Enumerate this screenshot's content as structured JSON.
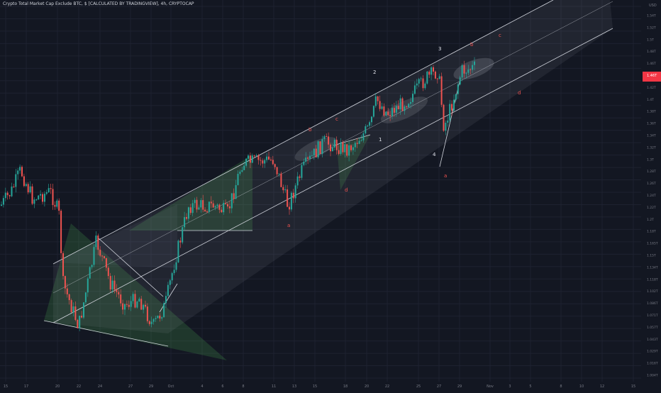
{
  "chart_data": {
    "type": "candlestick",
    "title": "Crypto Total Market Cap Exclude BTC, $ [CALCULATED BY TRADINGVIEW], 4h, CRYPTOCAP",
    "y_unit": "USD",
    "current_price": "1.46T",
    "y_ticks": [
      "1.54T",
      "1.52T",
      "1.5T",
      "1.48T",
      "1.46T",
      "1.44T",
      "1.42T",
      "1.4T",
      "1.38T",
      "1.36T",
      "1.34T",
      "1.32T",
      "1.3T",
      "1.28T",
      "1.26T",
      "1.24T",
      "1.22T",
      "1.2T",
      "1.18T",
      "1.165T",
      "1.15T",
      "1.134T",
      "1.118T",
      "1.102T",
      "1.086T",
      "1.071T",
      "1.057T",
      "1.043T",
      "1.029T",
      "1.016T",
      "1.004T"
    ],
    "x_ticks": [
      "15",
      "17",
      "20",
      "22",
      "24",
      "27",
      "29",
      "Oct",
      "4",
      "6",
      "8",
      "11",
      "13",
      "15",
      "18",
      "20",
      "22",
      "25",
      "27",
      "29",
      "Nov",
      "3",
      "5",
      "8",
      "10",
      "12",
      "15"
    ],
    "wave_labels": {
      "white": [
        "1",
        "2",
        "3",
        "4"
      ],
      "red": [
        "a",
        "b",
        "c",
        "d",
        "a",
        "b",
        "c",
        "d",
        "a"
      ]
    },
    "grid": true,
    "colors": {
      "background": "#131722",
      "up": "#26a69a",
      "down": "#ef5350",
      "price_tag": "#f23645",
      "label_red": "#ef5350"
    }
  }
}
